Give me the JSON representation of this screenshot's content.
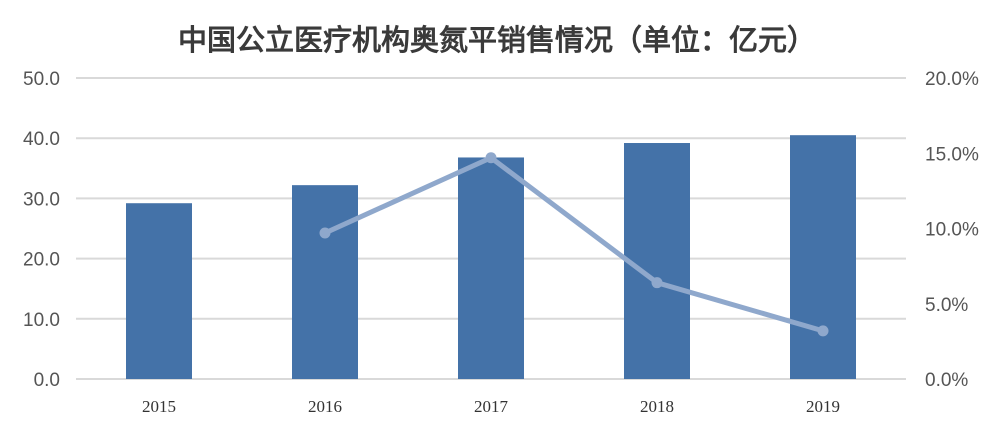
{
  "chart_data": {
    "type": "bar",
    "title": "中国公立医疗机构奥氮平销售情况（单位：亿元）",
    "categories": [
      "2015",
      "2016",
      "2017",
      "2018",
      "2019"
    ],
    "series": [
      {
        "kind": "bar",
        "axis": "left",
        "color": "#4472a8",
        "values": [
          29.2,
          32.2,
          36.8,
          39.2,
          40.5
        ]
      },
      {
        "kind": "line",
        "axis": "right",
        "color": "#8fa8cc",
        "values": [
          null,
          9.7,
          14.7,
          6.4,
          3.2
        ]
      }
    ],
    "y_left": {
      "range": [
        0,
        50
      ],
      "ticks": [
        "0.0",
        "10.0",
        "20.0",
        "30.0",
        "40.0",
        "50.0"
      ]
    },
    "y_right": {
      "range": [
        0,
        20
      ],
      "unit": "%",
      "ticks": [
        "0.0%",
        "5.0%",
        "10.0%",
        "15.0%",
        "20.0%"
      ]
    },
    "grid": true,
    "gridColor": "#d9d9d9"
  }
}
